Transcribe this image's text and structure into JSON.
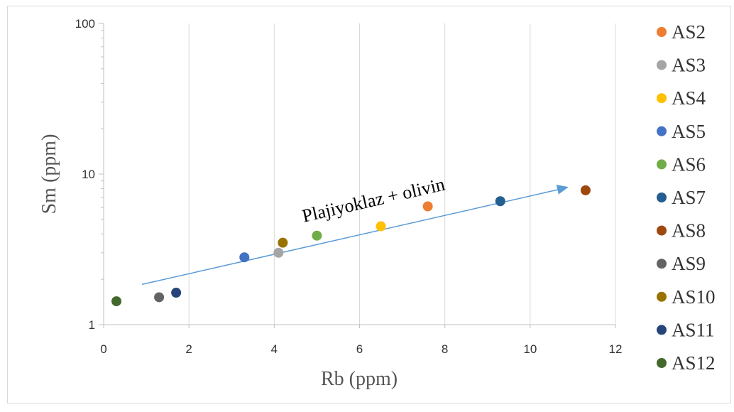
{
  "chart_data": {
    "type": "scatter",
    "xlabel": "Rb (ppm)",
    "ylabel": "Sm (ppm)",
    "xlim": [
      0,
      12
    ],
    "ylim": [
      1,
      100
    ],
    "y_scale": "log",
    "x_ticks": [
      "0",
      "2",
      "4",
      "6",
      "8",
      "10",
      "12"
    ],
    "y_ticks": [
      "1",
      "10",
      "100"
    ],
    "grid": "vertical",
    "legend_position": "right",
    "annotation": {
      "text": "Plajiyoklaz + olivin",
      "arrow_from": [
        0.9,
        1.85
      ],
      "arrow_to": [
        10.9,
        8.2
      ]
    },
    "series": [
      {
        "name": "AS2",
        "color": "#ED7D31",
        "x": 7.6,
        "y": 6.1
      },
      {
        "name": "AS3",
        "color": "#A5A5A5",
        "x": 4.1,
        "y": 3.0
      },
      {
        "name": "AS4",
        "color": "#FFC000",
        "x": 6.5,
        "y": 4.5
      },
      {
        "name": "AS5",
        "color": "#4472C4",
        "x": 3.3,
        "y": 2.8
      },
      {
        "name": "AS6",
        "color": "#70AD47",
        "x": 5.0,
        "y": 3.9
      },
      {
        "name": "AS7",
        "color": "#255E91",
        "x": 9.3,
        "y": 6.6
      },
      {
        "name": "AS8",
        "color": "#9E480E",
        "x": 11.3,
        "y": 7.8
      },
      {
        "name": "AS9",
        "color": "#636363",
        "x": 1.3,
        "y": 1.52
      },
      {
        "name": "AS10",
        "color": "#997300",
        "x": 4.2,
        "y": 3.5
      },
      {
        "name": "AS11",
        "color": "#264478",
        "x": 1.7,
        "y": 1.63
      },
      {
        "name": "AS12",
        "color": "#43682B",
        "x": 0.3,
        "y": 1.43
      }
    ]
  }
}
